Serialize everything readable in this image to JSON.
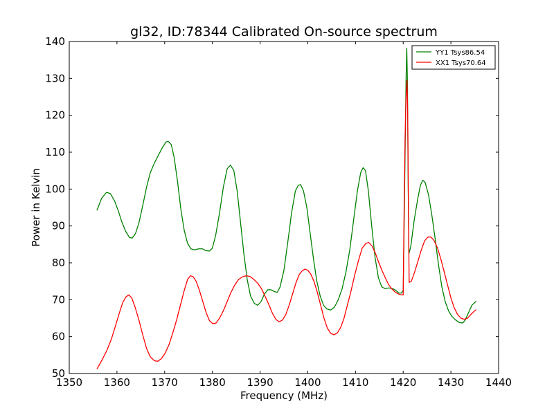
{
  "chart_data": {
    "type": "line",
    "title": "gl32, ID:78344 Calibrated On-source spectrum",
    "xlabel": "Frequency (MHz)",
    "ylabel": "Power in Kelvin",
    "xlim": [
      1350,
      1440
    ],
    "ylim": [
      50,
      140
    ],
    "xticks": [
      1350,
      1360,
      1370,
      1380,
      1390,
      1400,
      1410,
      1420,
      1430,
      1440
    ],
    "yticks": [
      50,
      60,
      70,
      80,
      90,
      100,
      110,
      120,
      130,
      140
    ],
    "grid": false,
    "legend_position": "top-right",
    "series": [
      {
        "name": "YY1 Tsys86.54",
        "color": "#008000",
        "points": [
          [
            1355.8,
            94.2
          ],
          [
            1356.8,
            97.5
          ],
          [
            1357.8,
            99.1
          ],
          [
            1358.6,
            98.8
          ],
          [
            1359.5,
            96.8
          ],
          [
            1360.3,
            94.0
          ],
          [
            1361.0,
            91.2
          ],
          [
            1361.8,
            88.6
          ],
          [
            1362.6,
            86.9
          ],
          [
            1363.2,
            86.7
          ],
          [
            1363.9,
            88.0
          ],
          [
            1364.6,
            90.8
          ],
          [
            1365.4,
            95.5
          ],
          [
            1366.2,
            100.5
          ],
          [
            1367.0,
            104.5
          ],
          [
            1367.9,
            107.2
          ],
          [
            1368.7,
            109.2
          ],
          [
            1369.5,
            111.2
          ],
          [
            1370.3,
            112.8
          ],
          [
            1370.8,
            112.9
          ],
          [
            1371.4,
            112.0
          ],
          [
            1372.0,
            108.5
          ],
          [
            1372.7,
            102.0
          ],
          [
            1373.4,
            94.5
          ],
          [
            1374.1,
            88.8
          ],
          [
            1374.8,
            85.3
          ],
          [
            1375.5,
            83.8
          ],
          [
            1376.3,
            83.5
          ],
          [
            1377.1,
            83.8
          ],
          [
            1377.9,
            83.8
          ],
          [
            1378.6,
            83.3
          ],
          [
            1379.4,
            83.2
          ],
          [
            1380.0,
            84.0
          ],
          [
            1380.7,
            87.5
          ],
          [
            1381.5,
            93.5
          ],
          [
            1382.3,
            100.5
          ],
          [
            1383.1,
            105.5
          ],
          [
            1383.8,
            106.5
          ],
          [
            1384.5,
            105.0
          ],
          [
            1385.2,
            99.5
          ],
          [
            1385.9,
            91.0
          ],
          [
            1386.6,
            82.5
          ],
          [
            1387.3,
            75.5
          ],
          [
            1388.0,
            71.0
          ],
          [
            1388.8,
            69.0
          ],
          [
            1389.5,
            68.5
          ],
          [
            1390.2,
            69.5
          ],
          [
            1390.9,
            71.5
          ],
          [
            1391.6,
            72.7
          ],
          [
            1392.3,
            72.7
          ],
          [
            1393.0,
            72.2
          ],
          [
            1393.6,
            72.0
          ],
          [
            1394.2,
            73.5
          ],
          [
            1395.0,
            78.0
          ],
          [
            1395.8,
            85.5
          ],
          [
            1396.6,
            93.5
          ],
          [
            1397.4,
            99.5
          ],
          [
            1398.0,
            101.0
          ],
          [
            1398.5,
            101.2
          ],
          [
            1399.1,
            99.5
          ],
          [
            1399.8,
            95.0
          ],
          [
            1400.5,
            88.0
          ],
          [
            1401.2,
            81.0
          ],
          [
            1401.9,
            75.0
          ],
          [
            1402.6,
            71.0
          ],
          [
            1403.3,
            68.5
          ],
          [
            1404.0,
            67.5
          ],
          [
            1404.8,
            67.2
          ],
          [
            1405.6,
            68.0
          ],
          [
            1406.4,
            70.0
          ],
          [
            1407.2,
            73.0
          ],
          [
            1408.0,
            77.5
          ],
          [
            1408.8,
            83.5
          ],
          [
            1409.6,
            91.5
          ],
          [
            1410.4,
            99.5
          ],
          [
            1411.1,
            104.5
          ],
          [
            1411.6,
            105.8
          ],
          [
            1412.1,
            105.0
          ],
          [
            1412.7,
            99.5
          ],
          [
            1413.4,
            90.0
          ],
          [
            1414.1,
            81.5
          ],
          [
            1414.8,
            76.0
          ],
          [
            1415.5,
            73.5
          ],
          [
            1416.2,
            73.0
          ],
          [
            1417.0,
            73.2
          ],
          [
            1417.8,
            73.0
          ],
          [
            1418.5,
            72.5
          ],
          [
            1419.1,
            71.8
          ],
          [
            1419.6,
            71.8
          ],
          [
            1420.0,
            72.5
          ],
          [
            1420.2,
            90.0
          ],
          [
            1420.4,
            110.0
          ],
          [
            1420.6,
            130.0
          ],
          [
            1420.75,
            138.2
          ],
          [
            1420.9,
            128.0
          ],
          [
            1421.05,
            100.0
          ],
          [
            1421.2,
            82.5
          ],
          [
            1421.6,
            84.5
          ],
          [
            1422.3,
            91.5
          ],
          [
            1423.0,
            97.0
          ],
          [
            1423.6,
            101.0
          ],
          [
            1424.1,
            102.4
          ],
          [
            1424.6,
            101.8
          ],
          [
            1425.3,
            98.5
          ],
          [
            1426.0,
            93.0
          ],
          [
            1426.7,
            86.5
          ],
          [
            1427.4,
            79.5
          ],
          [
            1428.1,
            73.5
          ],
          [
            1428.8,
            69.5
          ],
          [
            1429.5,
            67.0
          ],
          [
            1430.2,
            65.5
          ],
          [
            1431.0,
            64.5
          ],
          [
            1431.8,
            63.8
          ],
          [
            1432.5,
            63.7
          ],
          [
            1433.0,
            64.5
          ],
          [
            1433.7,
            66.5
          ],
          [
            1434.4,
            68.5
          ],
          [
            1435.3,
            69.6
          ]
        ]
      },
      {
        "name": "XX1 Tsys70.64",
        "color": "#ff0000",
        "points": [
          [
            1355.8,
            51.2
          ],
          [
            1356.8,
            53.5
          ],
          [
            1357.8,
            56.0
          ],
          [
            1358.8,
            59.2
          ],
          [
            1359.6,
            62.5
          ],
          [
            1360.4,
            66.0
          ],
          [
            1361.2,
            69.2
          ],
          [
            1361.9,
            70.8
          ],
          [
            1362.5,
            71.3
          ],
          [
            1363.1,
            70.5
          ],
          [
            1363.8,
            68.0
          ],
          [
            1364.6,
            64.5
          ],
          [
            1365.4,
            60.5
          ],
          [
            1366.2,
            56.8
          ],
          [
            1367.0,
            54.5
          ],
          [
            1367.8,
            53.5
          ],
          [
            1368.5,
            53.3
          ],
          [
            1369.3,
            54.0
          ],
          [
            1370.1,
            55.5
          ],
          [
            1370.9,
            57.8
          ],
          [
            1371.7,
            61.0
          ],
          [
            1372.5,
            64.5
          ],
          [
            1373.3,
            68.5
          ],
          [
            1374.1,
            72.5
          ],
          [
            1374.8,
            75.5
          ],
          [
            1375.4,
            76.5
          ],
          [
            1376.0,
            76.2
          ],
          [
            1376.6,
            75.0
          ],
          [
            1377.3,
            72.5
          ],
          [
            1378.0,
            69.5
          ],
          [
            1378.7,
            66.5
          ],
          [
            1379.4,
            64.3
          ],
          [
            1380.1,
            63.5
          ],
          [
            1380.8,
            63.7
          ],
          [
            1381.5,
            65.0
          ],
          [
            1382.3,
            67.0
          ],
          [
            1383.1,
            69.5
          ],
          [
            1383.9,
            72.0
          ],
          [
            1384.7,
            74.0
          ],
          [
            1385.5,
            75.5
          ],
          [
            1386.3,
            76.2
          ],
          [
            1387.1,
            76.5
          ],
          [
            1387.9,
            76.3
          ],
          [
            1388.7,
            75.5
          ],
          [
            1389.5,
            74.5
          ],
          [
            1390.3,
            73.0
          ],
          [
            1391.1,
            70.8
          ],
          [
            1391.9,
            68.5
          ],
          [
            1392.6,
            66.3
          ],
          [
            1393.3,
            64.7
          ],
          [
            1394.0,
            64.0
          ],
          [
            1394.7,
            64.5
          ],
          [
            1395.4,
            66.0
          ],
          [
            1396.1,
            68.5
          ],
          [
            1396.8,
            71.5
          ],
          [
            1397.5,
            74.5
          ],
          [
            1398.2,
            76.8
          ],
          [
            1398.8,
            77.8
          ],
          [
            1399.4,
            78.3
          ],
          [
            1400.0,
            78.0
          ],
          [
            1400.6,
            77.0
          ],
          [
            1401.3,
            75.0
          ],
          [
            1402.0,
            72.0
          ],
          [
            1402.7,
            68.5
          ],
          [
            1403.4,
            65.0
          ],
          [
            1404.1,
            62.3
          ],
          [
            1404.8,
            60.9
          ],
          [
            1405.5,
            60.5
          ],
          [
            1406.2,
            61.0
          ],
          [
            1406.9,
            62.5
          ],
          [
            1407.6,
            65.0
          ],
          [
            1408.3,
            68.5
          ],
          [
            1409.0,
            72.0
          ],
          [
            1409.8,
            76.5
          ],
          [
            1410.6,
            80.5
          ],
          [
            1411.4,
            84.0
          ],
          [
            1412.2,
            85.3
          ],
          [
            1412.8,
            85.5
          ],
          [
            1413.5,
            84.5
          ],
          [
            1414.2,
            82.5
          ],
          [
            1414.9,
            80.0
          ],
          [
            1415.6,
            77.8
          ],
          [
            1416.3,
            75.8
          ],
          [
            1417.0,
            74.0
          ],
          [
            1417.7,
            72.8
          ],
          [
            1418.4,
            72.0
          ],
          [
            1419.1,
            71.5
          ],
          [
            1419.7,
            71.3
          ],
          [
            1420.0,
            71.3
          ],
          [
            1420.2,
            95.0
          ],
          [
            1420.4,
            114.0
          ],
          [
            1420.6,
            125.0
          ],
          [
            1420.8,
            129.5
          ],
          [
            1420.95,
            120.0
          ],
          [
            1421.1,
            95.0
          ],
          [
            1421.25,
            74.7
          ],
          [
            1421.7,
            75.0
          ],
          [
            1422.4,
            77.5
          ],
          [
            1423.1,
            80.5
          ],
          [
            1423.8,
            83.5
          ],
          [
            1424.5,
            86.0
          ],
          [
            1425.2,
            87.0
          ],
          [
            1425.8,
            87.0
          ],
          [
            1426.5,
            86.0
          ],
          [
            1427.2,
            84.0
          ],
          [
            1427.9,
            81.0
          ],
          [
            1428.6,
            77.5
          ],
          [
            1429.3,
            74.0
          ],
          [
            1430.0,
            70.5
          ],
          [
            1430.7,
            67.8
          ],
          [
            1431.4,
            66.0
          ],
          [
            1432.1,
            65.0
          ],
          [
            1432.8,
            64.7
          ],
          [
            1433.5,
            65.0
          ],
          [
            1434.2,
            66.0
          ],
          [
            1434.8,
            66.8
          ],
          [
            1435.3,
            67.3
          ]
        ]
      }
    ]
  }
}
